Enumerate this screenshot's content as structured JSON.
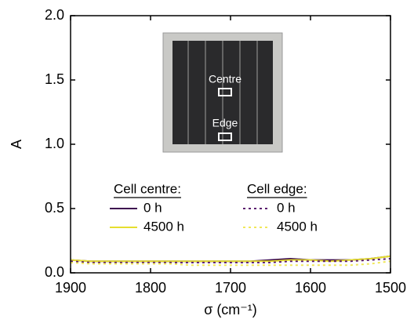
{
  "chart_data": {
    "type": "line",
    "x_label": "σ (cm⁻¹)",
    "y_label": "A",
    "xlim": [
      1900,
      1500
    ],
    "xticks": [
      1900,
      1800,
      1700,
      1600,
      1500
    ],
    "ylim": [
      0,
      2.0
    ],
    "yticks": [
      {
        "value": 0,
        "label": "0.0"
      },
      {
        "value": 0.5,
        "label": "0.5"
      },
      {
        "value": 1.0,
        "label": "1.0"
      },
      {
        "value": 1.5,
        "label": "1.5"
      },
      {
        "value": 2.0,
        "label": "2.0"
      }
    ],
    "inset_labels": [
      "Centre",
      "Edge"
    ],
    "x": [
      1900,
      1875,
      1850,
      1825,
      1800,
      1775,
      1750,
      1725,
      1700,
      1675,
      1650,
      1625,
      1600,
      1575,
      1550,
      1525,
      1500
    ],
    "series_groups": [
      {
        "title": "Cell centre:",
        "series": [
          {
            "name": "0 h",
            "color": "#3d0d4f",
            "dash": "solid",
            "values": [
              0.1,
              0.09,
              0.09,
              0.09,
              0.09,
              0.09,
              0.09,
              0.09,
              0.09,
              0.09,
              0.1,
              0.11,
              0.1,
              0.1,
              0.1,
              0.11,
              0.13
            ]
          },
          {
            "name": "4500 h",
            "color": "#e6df2f",
            "dash": "solid",
            "values": [
              0.1,
              0.09,
              0.09,
              0.09,
              0.09,
              0.09,
              0.09,
              0.09,
              0.09,
              0.09,
              0.09,
              0.1,
              0.1,
              0.09,
              0.1,
              0.11,
              0.13
            ]
          }
        ]
      },
      {
        "title": "Cell edge:",
        "series": [
          {
            "name": "0 h",
            "color": "#5a1a6e",
            "dash": "dot",
            "values": [
              0.09,
              0.08,
              0.08,
              0.08,
              0.08,
              0.08,
              0.08,
              0.08,
              0.08,
              0.08,
              0.08,
              0.09,
              0.09,
              0.09,
              0.09,
              0.1,
              0.11
            ]
          },
          {
            "name": "4500 h",
            "color": "#f0e85a",
            "dash": "dot",
            "values": [
              0.08,
              0.07,
              0.07,
              0.07,
              0.07,
              0.07,
              0.06,
              0.06,
              0.06,
              0.06,
              0.06,
              0.06,
              0.06,
              0.06,
              0.06,
              0.07,
              0.09
            ]
          }
        ]
      }
    ]
  }
}
